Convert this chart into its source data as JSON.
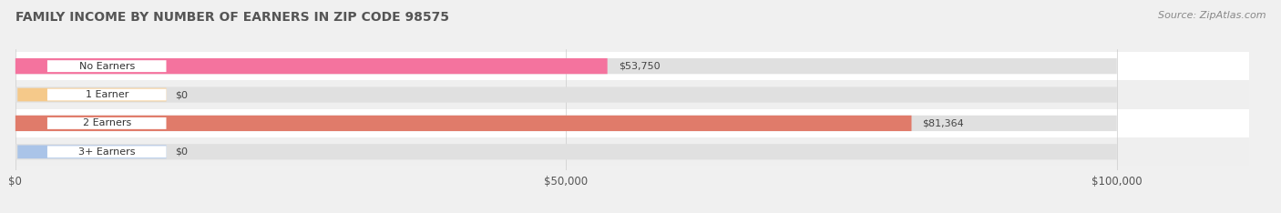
{
  "title": "FAMILY INCOME BY NUMBER OF EARNERS IN ZIP CODE 98575",
  "source": "Source: ZipAtlas.com",
  "categories": [
    "No Earners",
    "1 Earner",
    "2 Earners",
    "3+ Earners"
  ],
  "values": [
    53750,
    0,
    81364,
    0
  ],
  "max_value": 100000,
  "bar_colors": [
    "#f4739e",
    "#f5c98a",
    "#e07b6a",
    "#aac4e8"
  ],
  "label_bg_colors": [
    "#f4739e",
    "#f5c98a",
    "#e07b6a",
    "#aac4e8"
  ],
  "fig_bg_color": "#f0f0f0",
  "row_bg_colors": [
    "#ffffff",
    "#efefef",
    "#ffffff",
    "#efefef"
  ],
  "title_fontsize": 10,
  "source_fontsize": 8,
  "tick_labels": [
    "$0",
    "$50,000",
    "$100,000"
  ],
  "tick_values": [
    0,
    50000,
    100000
  ],
  "value_labels": [
    "$53,750",
    "$0",
    "$81,364",
    "$0"
  ],
  "bar_height": 0.55
}
